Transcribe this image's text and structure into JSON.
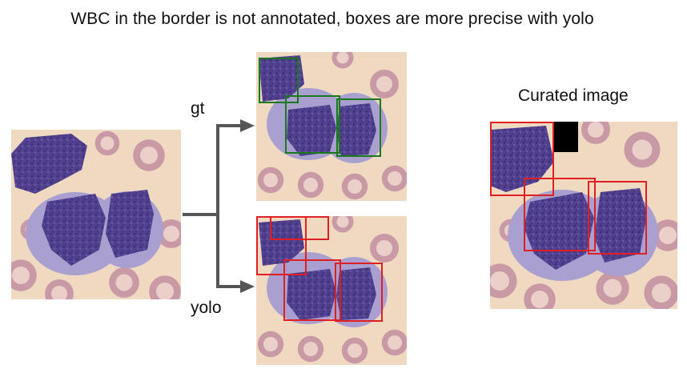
{
  "title": "WBC in the border is not annotated, boxes are more precise with yolo",
  "labels": {
    "gt": "gt",
    "yolo": "yolo",
    "curated": "Curated image"
  },
  "colors": {
    "gt_box": "#1a7a1a",
    "yolo_box": "#e02020",
    "curated_box": "#e02020",
    "arrow": "#555555",
    "background": "#efd9c0",
    "cell_nucleus": "#4e3f8f",
    "red_cell": "#c9a0aa"
  }
}
